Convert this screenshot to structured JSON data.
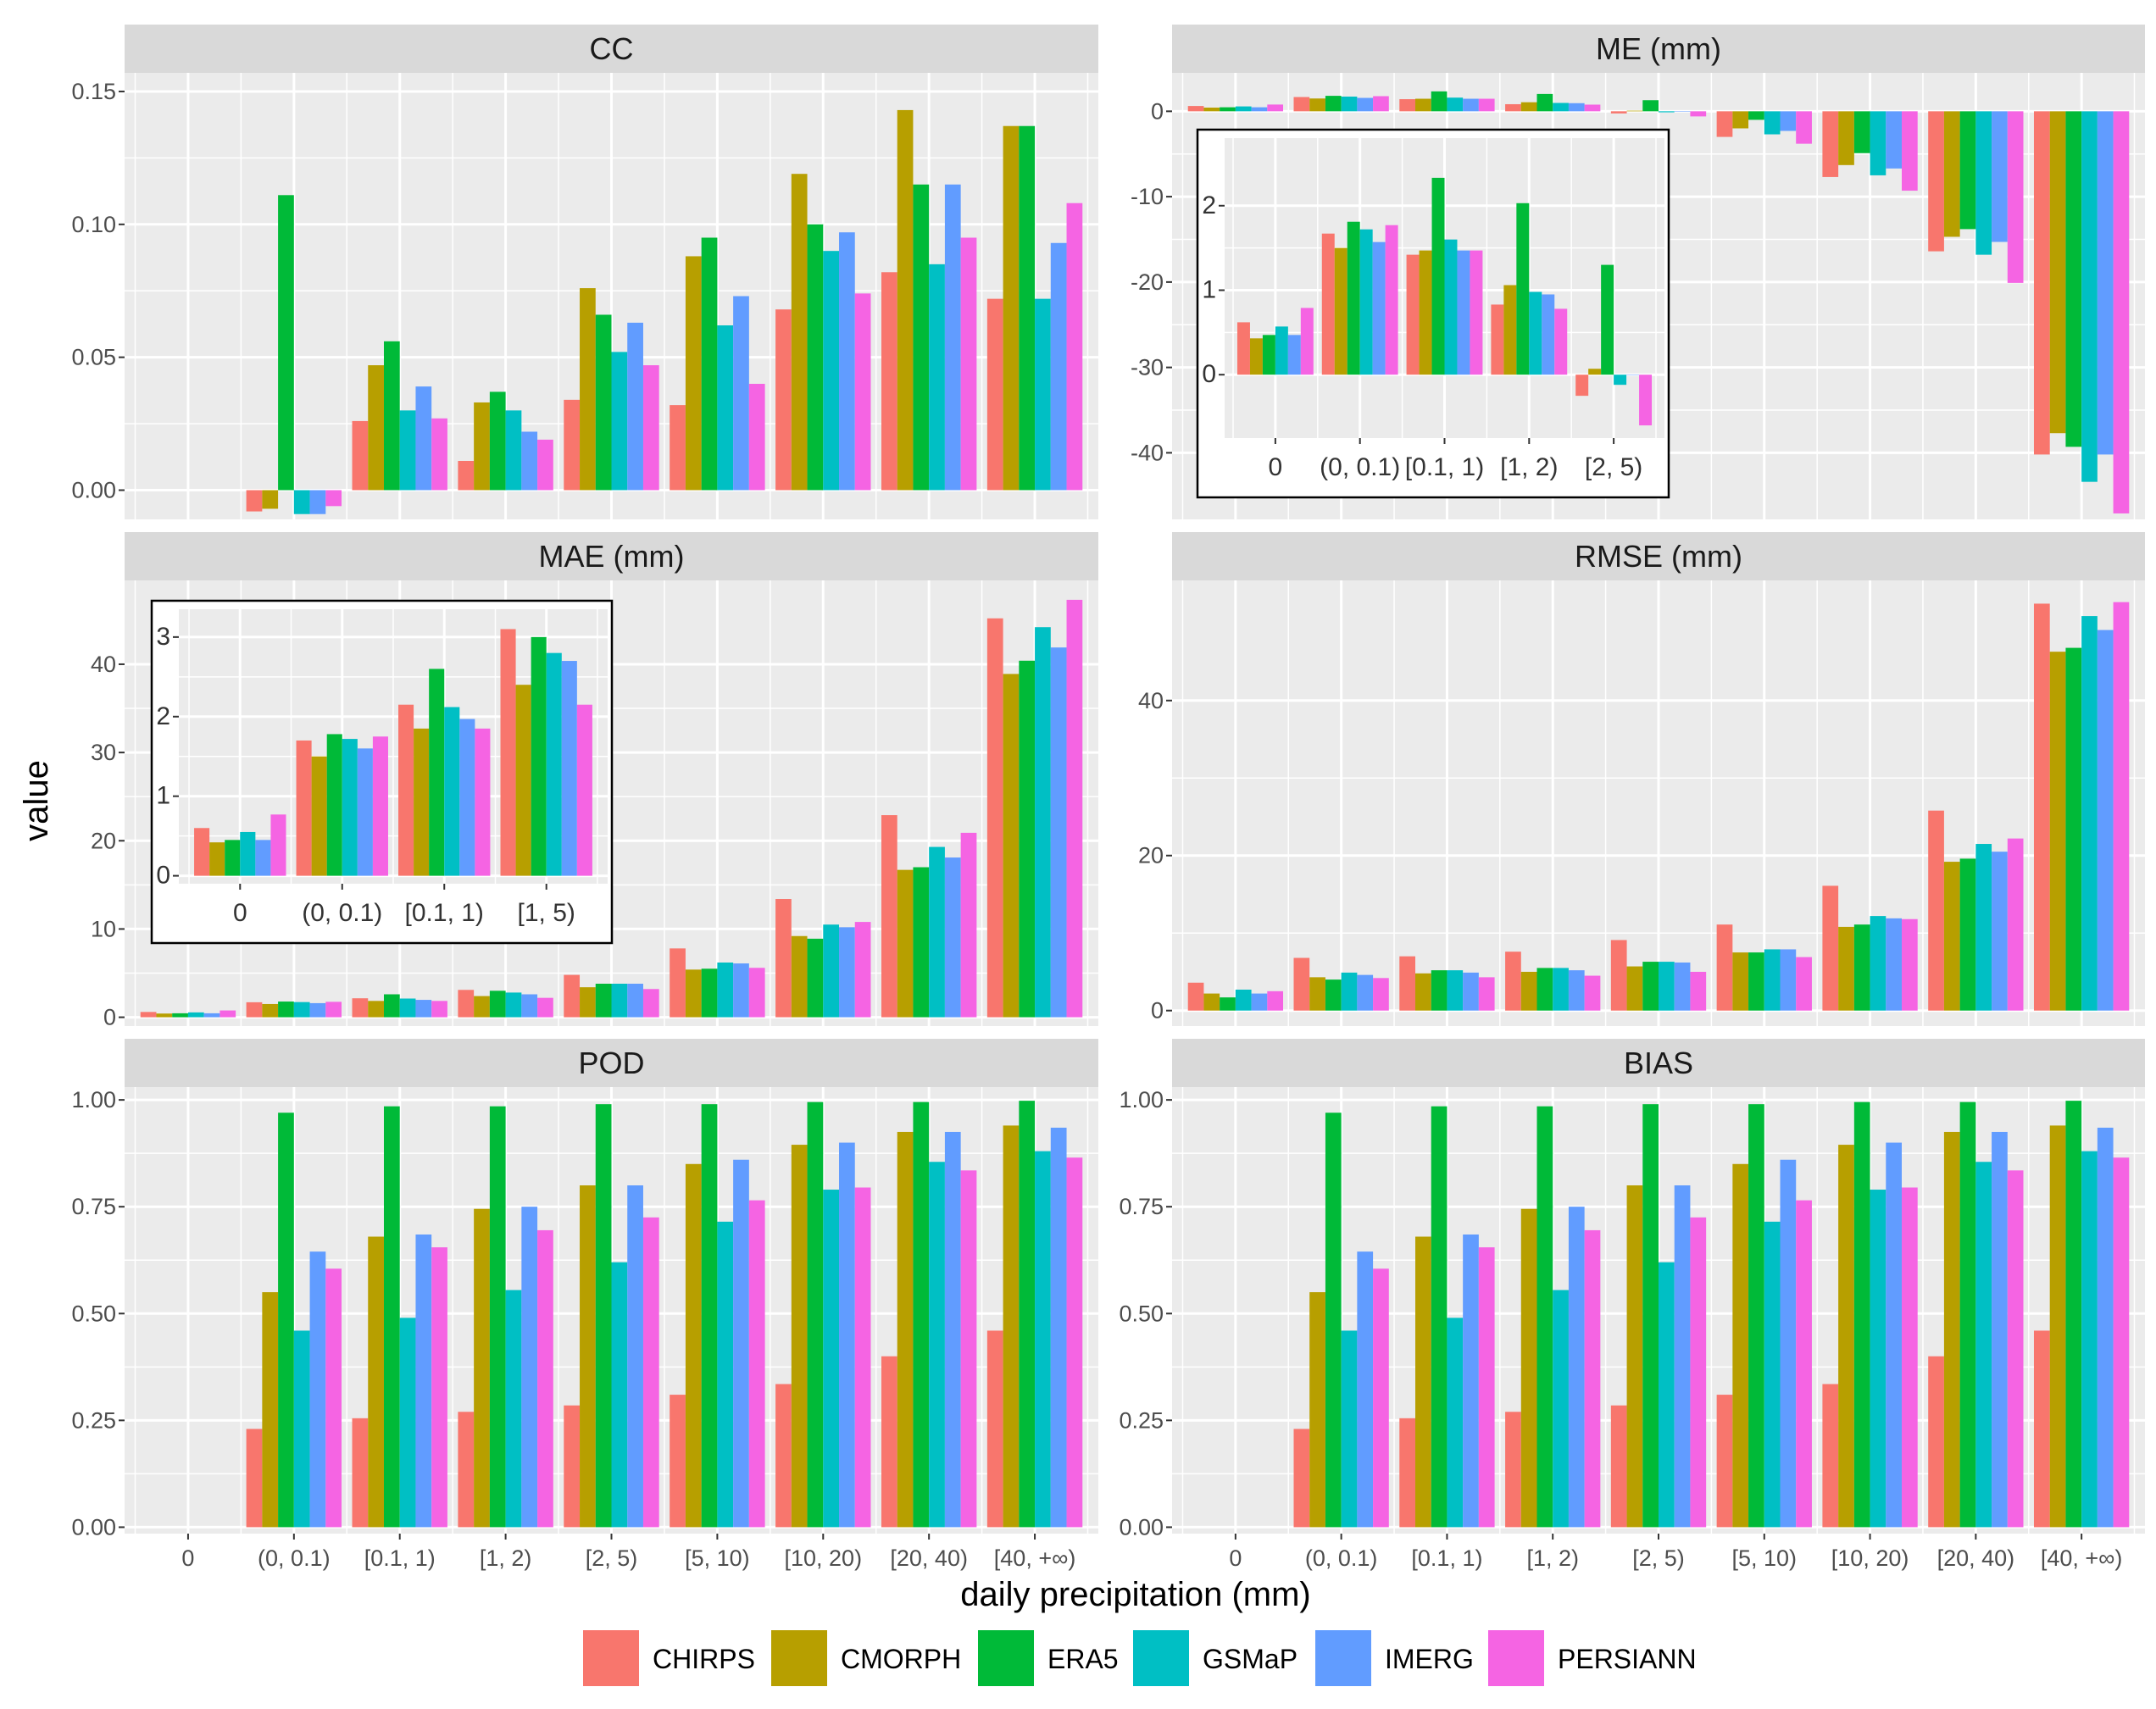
{
  "xlabel": "daily precipitation (mm)",
  "ylabel": "value",
  "legend": {
    "placement": "bottom",
    "items": [
      {
        "name": "CHIRPS",
        "color": "#F8766D"
      },
      {
        "name": "CMORPH",
        "color": "#B79F00"
      },
      {
        "name": "ERA5",
        "color": "#00BA38"
      },
      {
        "name": "GSMaP",
        "color": "#00BFC4"
      },
      {
        "name": "IMERG",
        "color": "#619CFF"
      },
      {
        "name": "PERSIANN",
        "color": "#F564E3"
      }
    ]
  },
  "chart_data": [
    {
      "type": "bar",
      "title": "CC",
      "categories": [
        "0",
        "(0, 0.1)",
        "[0.1, 1)",
        "[1, 2)",
        "[2, 5)",
        "[5, 10)",
        "[10, 20)",
        "[20, 40)",
        "[40, +∞)"
      ],
      "ylim": [
        -0.011,
        0.157
      ],
      "yticks": [
        0,
        0.05,
        0.1,
        0.15
      ],
      "yticklabels": [
        "0.00",
        "0.05",
        "0.10",
        "0.15"
      ],
      "series": [
        {
          "name": "CHIRPS",
          "values": [
            null,
            -0.008,
            0.026,
            0.011,
            0.034,
            0.032,
            0.068,
            0.082,
            0.072
          ]
        },
        {
          "name": "CMORPH",
          "values": [
            null,
            -0.007,
            0.047,
            0.033,
            0.076,
            0.088,
            0.119,
            0.143,
            0.137
          ]
        },
        {
          "name": "ERA5",
          "values": [
            null,
            0.111,
            0.056,
            0.037,
            0.066,
            0.095,
            0.1,
            0.115,
            0.137
          ]
        },
        {
          "name": "GSMaP",
          "values": [
            null,
            -0.009,
            0.03,
            0.03,
            0.052,
            0.062,
            0.09,
            0.085,
            0.072
          ]
        },
        {
          "name": "IMERG",
          "values": [
            null,
            -0.009,
            0.039,
            0.022,
            0.063,
            0.073,
            0.097,
            0.115,
            0.093
          ]
        },
        {
          "name": "PERSIANN",
          "values": [
            null,
            -0.006,
            0.027,
            0.019,
            0.047,
            0.04,
            0.074,
            0.095,
            0.108
          ]
        }
      ]
    },
    {
      "type": "bar",
      "title": "ME (mm)",
      "categories": [
        "0",
        "(0, 0.1)",
        "[0.1, 1)",
        "[1, 2)",
        "[2, 5)",
        "[5, 10)",
        "[10, 20)",
        "[20, 40)",
        "[40, +∞)"
      ],
      "ylim": [
        -47.8,
        4.5
      ],
      "yticks": [
        -40,
        -30,
        -20,
        -10,
        0
      ],
      "yticklabels": [
        "-40",
        "-30",
        "-20",
        "-10",
        "0"
      ],
      "series": [
        {
          "name": "CHIRPS",
          "values": [
            0.62,
            1.67,
            1.42,
            0.83,
            -0.25,
            -3.0,
            -7.7,
            -16.4,
            -40.2
          ]
        },
        {
          "name": "CMORPH",
          "values": [
            0.43,
            1.5,
            1.47,
            1.06,
            0.07,
            -2.0,
            -6.3,
            -14.7,
            -37.7
          ]
        },
        {
          "name": "ERA5",
          "values": [
            0.47,
            1.81,
            2.33,
            2.03,
            1.3,
            -1.0,
            -4.9,
            -13.8,
            -39.3
          ]
        },
        {
          "name": "GSMaP",
          "values": [
            0.57,
            1.72,
            1.6,
            0.98,
            -0.12,
            -2.7,
            -7.5,
            -16.8,
            -43.4
          ]
        },
        {
          "name": "IMERG",
          "values": [
            0.47,
            1.57,
            1.47,
            0.95,
            0.0,
            -2.3,
            -6.7,
            -15.3,
            -40.2
          ]
        },
        {
          "name": "PERSIANN",
          "values": [
            0.79,
            1.77,
            1.47,
            0.78,
            -0.6,
            -3.8,
            -9.3,
            -20.1,
            -47.1
          ]
        }
      ],
      "inset": {
        "categories": [
          "0",
          "(0, 0.1)",
          "[0.1, 1)",
          "[1, 2)",
          "[2, 5)"
        ],
        "ylim": [
          -0.75,
          2.8
        ],
        "yticks": [
          0,
          1,
          2
        ],
        "yticklabels": [
          "0",
          "1",
          "2"
        ],
        "series": [
          {
            "name": "CHIRPS",
            "values": [
              0.62,
              1.67,
              1.42,
              0.83,
              -0.25
            ]
          },
          {
            "name": "CMORPH",
            "values": [
              0.43,
              1.5,
              1.47,
              1.06,
              0.07
            ]
          },
          {
            "name": "ERA5",
            "values": [
              0.47,
              1.81,
              2.33,
              2.03,
              1.3
            ]
          },
          {
            "name": "GSMaP",
            "values": [
              0.57,
              1.72,
              1.6,
              0.98,
              -0.12
            ]
          },
          {
            "name": "IMERG",
            "values": [
              0.47,
              1.57,
              1.47,
              0.95,
              0.0
            ]
          },
          {
            "name": "PERSIANN",
            "values": [
              0.79,
              1.77,
              1.47,
              0.78,
              -0.6
            ]
          }
        ]
      }
    },
    {
      "type": "bar",
      "title": "MAE (mm)",
      "categories": [
        "0",
        "(0, 0.1)",
        "[0.1, 1)",
        "[1, 2)",
        "[2, 5)",
        "[5, 10)",
        "[10, 20)",
        "[20, 40)",
        "[40, +∞)"
      ],
      "ylim": [
        -1.0,
        49.5
      ],
      "yticks": [
        0,
        10,
        20,
        30,
        40
      ],
      "yticklabels": [
        "0",
        "10",
        "20",
        "30",
        "40"
      ],
      "series": [
        {
          "name": "CHIRPS",
          "values": [
            0.6,
            1.7,
            2.15,
            3.1,
            4.8,
            7.8,
            13.4,
            22.9,
            45.2
          ]
        },
        {
          "name": "CMORPH",
          "values": [
            0.42,
            1.5,
            1.85,
            2.4,
            3.4,
            5.4,
            9.2,
            16.7,
            38.9
          ]
        },
        {
          "name": "ERA5",
          "values": [
            0.45,
            1.78,
            2.6,
            3.0,
            3.8,
            5.5,
            8.9,
            17.0,
            40.4
          ]
        },
        {
          "name": "GSMaP",
          "values": [
            0.55,
            1.72,
            2.12,
            2.8,
            3.8,
            6.2,
            10.5,
            19.3,
            44.2
          ]
        },
        {
          "name": "IMERG",
          "values": [
            0.45,
            1.6,
            1.97,
            2.6,
            3.8,
            6.1,
            10.2,
            18.1,
            41.9
          ]
        },
        {
          "name": "PERSIANN",
          "values": [
            0.77,
            1.75,
            1.85,
            2.2,
            3.2,
            5.6,
            10.8,
            20.9,
            47.3
          ]
        }
      ],
      "inset": {
        "categories": [
          "0",
          "(0, 0.1)",
          "[0.1, 1)",
          "[1, 5)"
        ],
        "ylim": [
          -0.1,
          3.35
        ],
        "yticks": [
          0,
          1,
          2,
          3
        ],
        "yticklabels": [
          "0",
          "1",
          "2",
          "3"
        ],
        "series": [
          {
            "name": "CHIRPS",
            "values": [
              0.6,
              1.7,
              2.15,
              3.1
            ]
          },
          {
            "name": "CMORPH",
            "values": [
              0.42,
              1.5,
              1.85,
              2.4
            ]
          },
          {
            "name": "ERA5",
            "values": [
              0.45,
              1.78,
              2.6,
              3.0
            ]
          },
          {
            "name": "GSMaP",
            "values": [
              0.55,
              1.72,
              2.12,
              2.8
            ]
          },
          {
            "name": "IMERG",
            "values": [
              0.45,
              1.6,
              1.97,
              2.7
            ]
          },
          {
            "name": "PERSIANN",
            "values": [
              0.77,
              1.75,
              1.85,
              2.15
            ]
          }
        ]
      }
    },
    {
      "type": "bar",
      "title": "RMSE (mm)",
      "categories": [
        "0",
        "(0, 0.1)",
        "[0.1, 1)",
        "[1, 2)",
        "[2, 5)",
        "[5, 10)",
        "[10, 20)",
        "[20, 40)",
        "[40, +∞)"
      ],
      "ylim": [
        -2.0,
        55.5
      ],
      "yticks": [
        0,
        20,
        40
      ],
      "yticklabels": [
        "0",
        "20",
        "40"
      ],
      "series": [
        {
          "name": "CHIRPS",
          "values": [
            3.6,
            6.8,
            7.0,
            7.6,
            9.1,
            11.1,
            16.1,
            25.8,
            52.5
          ]
        },
        {
          "name": "CMORPH",
          "values": [
            2.2,
            4.3,
            4.8,
            5.0,
            5.7,
            7.5,
            10.8,
            19.2,
            46.3
          ]
        },
        {
          "name": "ERA5",
          "values": [
            1.7,
            4.0,
            5.2,
            5.5,
            6.3,
            7.5,
            11.1,
            19.6,
            46.8
          ]
        },
        {
          "name": "GSMaP",
          "values": [
            2.7,
            4.9,
            5.2,
            5.5,
            6.3,
            7.9,
            12.2,
            21.5,
            50.9
          ]
        },
        {
          "name": "IMERG",
          "values": [
            2.2,
            4.6,
            4.9,
            5.2,
            6.2,
            7.9,
            11.9,
            20.5,
            49.1
          ]
        },
        {
          "name": "PERSIANN",
          "values": [
            2.5,
            4.2,
            4.3,
            4.5,
            5.0,
            6.9,
            11.8,
            22.2,
            52.7
          ]
        }
      ]
    },
    {
      "type": "bar",
      "title": "POD",
      "categories": [
        "0",
        "(0, 0.1)",
        "[0.1, 1)",
        "[1, 2)",
        "[2, 5)",
        "[5, 10)",
        "[10, 20)",
        "[20, 40)",
        "[40, +∞)"
      ],
      "ylim": [
        -0.015,
        1.03
      ],
      "yticks": [
        0,
        0.25,
        0.5,
        0.75,
        1
      ],
      "yticklabels": [
        "0.00",
        "0.25",
        "0.50",
        "0.75",
        "1.00"
      ],
      "series": [
        {
          "name": "CHIRPS",
          "values": [
            null,
            0.23,
            0.255,
            0.27,
            0.285,
            0.31,
            0.335,
            0.4,
            0.46
          ]
        },
        {
          "name": "CMORPH",
          "values": [
            null,
            0.55,
            0.68,
            0.745,
            0.8,
            0.85,
            0.895,
            0.925,
            0.94
          ]
        },
        {
          "name": "ERA5",
          "values": [
            null,
            0.97,
            0.985,
            0.985,
            0.99,
            0.99,
            0.995,
            0.995,
            0.998
          ]
        },
        {
          "name": "GSMaP",
          "values": [
            null,
            0.46,
            0.49,
            0.555,
            0.62,
            0.715,
            0.79,
            0.855,
            0.88
          ]
        },
        {
          "name": "IMERG",
          "values": [
            null,
            0.645,
            0.685,
            0.75,
            0.8,
            0.86,
            0.9,
            0.925,
            0.935
          ]
        },
        {
          "name": "PERSIANN",
          "values": [
            null,
            0.605,
            0.655,
            0.695,
            0.725,
            0.765,
            0.795,
            0.835,
            0.865
          ]
        }
      ]
    },
    {
      "type": "bar",
      "title": "BIAS",
      "categories": [
        "0",
        "(0, 0.1)",
        "[0.1, 1)",
        "[1, 2)",
        "[2, 5)",
        "[5, 10)",
        "[10, 20)",
        "[20, 40)",
        "[40, +∞)"
      ],
      "ylim": [
        -0.015,
        1.03
      ],
      "yticks": [
        0,
        0.25,
        0.5,
        0.75,
        1
      ],
      "yticklabels": [
        "0.00",
        "0.25",
        "0.50",
        "0.75",
        "1.00"
      ],
      "series": [
        {
          "name": "CHIRPS",
          "values": [
            null,
            0.23,
            0.255,
            0.27,
            0.285,
            0.31,
            0.335,
            0.4,
            0.46
          ]
        },
        {
          "name": "CMORPH",
          "values": [
            null,
            0.55,
            0.68,
            0.745,
            0.8,
            0.85,
            0.895,
            0.925,
            0.94
          ]
        },
        {
          "name": "ERA5",
          "values": [
            null,
            0.97,
            0.985,
            0.985,
            0.99,
            0.99,
            0.995,
            0.995,
            0.998
          ]
        },
        {
          "name": "GSMaP",
          "values": [
            null,
            0.46,
            0.49,
            0.555,
            0.62,
            0.715,
            0.79,
            0.855,
            0.88
          ]
        },
        {
          "name": "IMERG",
          "values": [
            null,
            0.645,
            0.685,
            0.75,
            0.8,
            0.86,
            0.9,
            0.925,
            0.935
          ]
        },
        {
          "name": "PERSIANN",
          "values": [
            null,
            0.605,
            0.655,
            0.695,
            0.725,
            0.765,
            0.795,
            0.835,
            0.865
          ]
        }
      ]
    }
  ]
}
